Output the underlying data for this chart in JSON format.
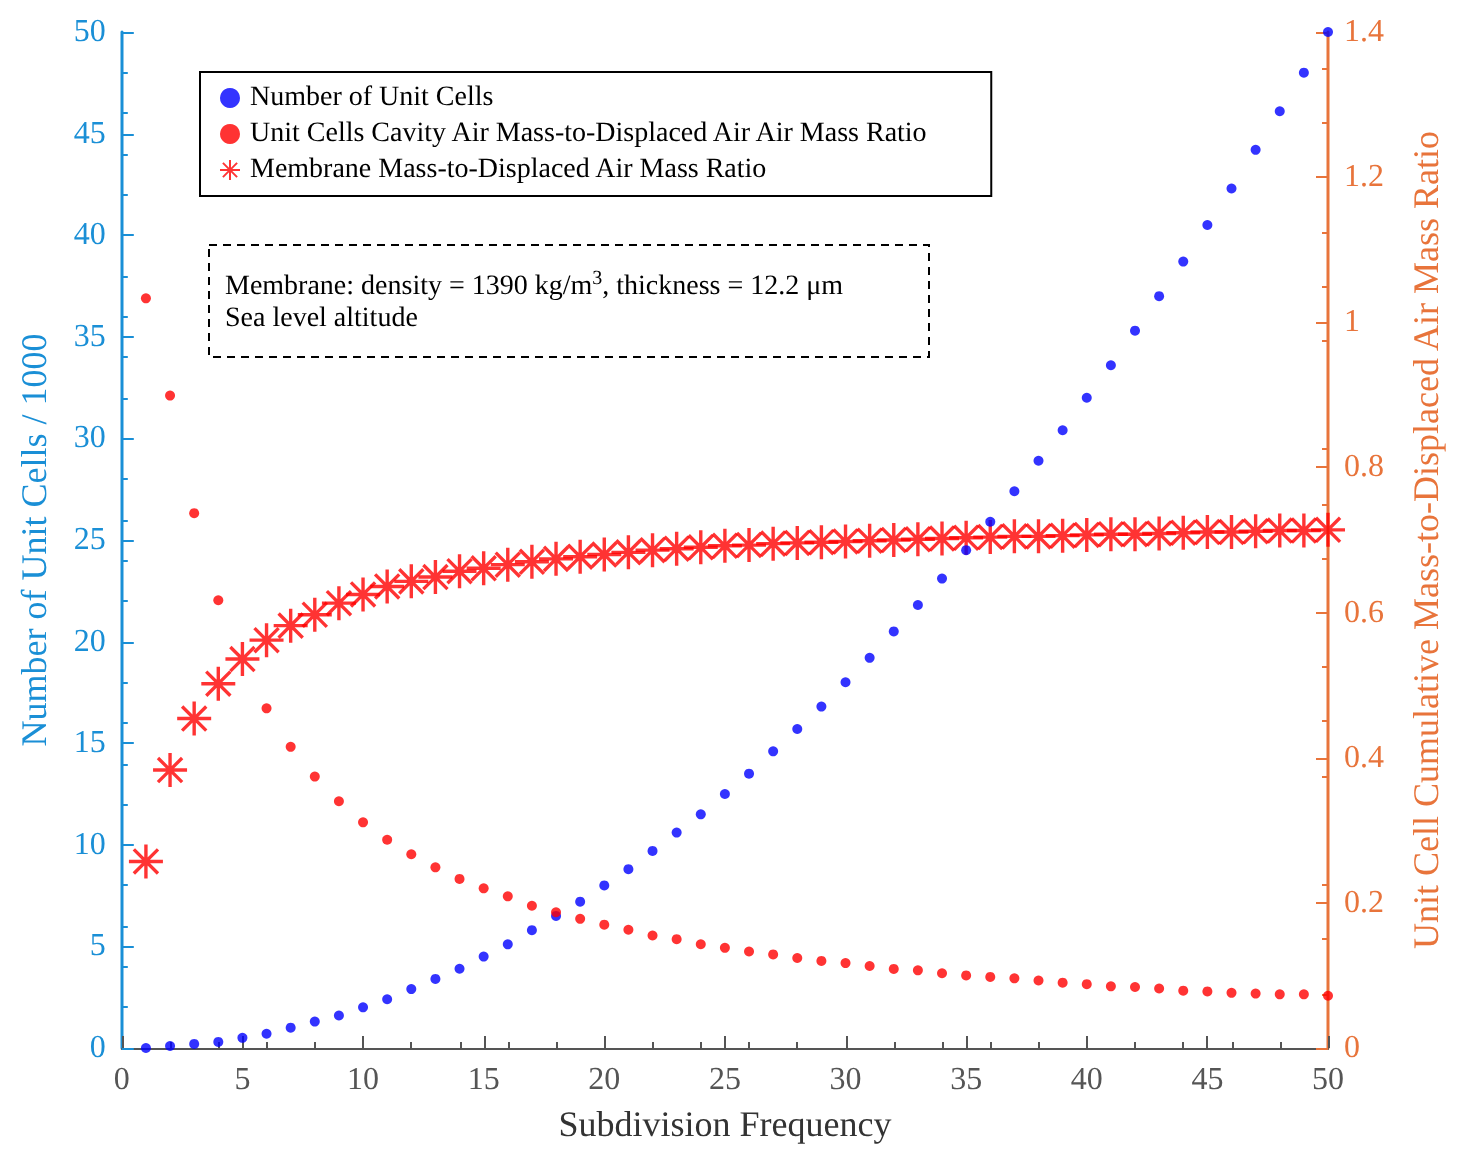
{
  "chart_data": {
    "type": "scatter",
    "xlabel": "Subdivision Frequency",
    "ylabel": "Number of Unit Cells / 1000",
    "y2label": "Unit Cell Cumulative Mass-to-Displaced Air Mass Ratio",
    "x": [
      1,
      2,
      3,
      4,
      5,
      6,
      7,
      8,
      9,
      10,
      11,
      12,
      13,
      14,
      15,
      16,
      17,
      18,
      19,
      20,
      21,
      22,
      23,
      24,
      25,
      26,
      27,
      28,
      29,
      30,
      31,
      32,
      33,
      34,
      35,
      36,
      37,
      38,
      39,
      40,
      41,
      42,
      43,
      44,
      45,
      46,
      47,
      48,
      49,
      50
    ],
    "xlim": [
      0,
      50
    ],
    "xticks": [
      0,
      5,
      10,
      15,
      20,
      25,
      30,
      35,
      40,
      45,
      50
    ],
    "ylim": [
      0,
      50
    ],
    "yticks": [
      0,
      5,
      10,
      15,
      20,
      25,
      30,
      35,
      40,
      45,
      50
    ],
    "y2lim": [
      0,
      1.4
    ],
    "y2ticks": [
      0,
      0.2,
      0.4,
      0.6,
      0.8,
      1,
      1.2,
      1.4
    ],
    "grid": false,
    "legend": "top left",
    "series": [
      {
        "name": "Number of Unit Cells",
        "color": "#0000ff",
        "marker": "circle",
        "values": [
          0,
          0.1,
          0.2,
          0.3,
          0.5,
          0.7,
          1,
          1.3,
          1.6,
          2,
          2.4,
          2.9,
          3.4,
          3.9,
          4.5,
          5.1,
          5.8,
          6.5,
          7.2,
          8,
          8.8,
          9.7,
          10.6,
          11.5,
          12.5,
          13.5,
          14.6,
          15.7,
          16.8,
          18,
          19.2,
          20.5,
          21.8,
          23.1,
          24.5,
          25.9,
          27.4,
          28.9,
          30.4,
          32,
          33.6,
          35.3,
          37,
          38.7,
          40.5,
          42.3,
          44.2,
          46.1,
          48,
          50
        ]
      },
      {
        "name": "Unit Cells Cavity Air Mass-to-Displaced Air Air Mass Ratio",
        "color": "#ff0000",
        "marker": "circle",
        "axis": "y2",
        "values": [
          1.033,
          0.899,
          0.737,
          0.617,
          null,
          0.468,
          0.415,
          0.374,
          0.34,
          0.311,
          0.287,
          0.267,
          0.249,
          0.233,
          0.22,
          0.209,
          0.196,
          0.187,
          0.178,
          0.17,
          0.163,
          0.155,
          0.15,
          0.143,
          0.138,
          0.133,
          0.129,
          0.124,
          0.12,
          0.117,
          0.113,
          0.109,
          0.107,
          0.103,
          0.1,
          0.098,
          0.096,
          0.093,
          0.09,
          0.088,
          0.085,
          0.084,
          0.082,
          0.079,
          0.078,
          0.076,
          0.075,
          0.074,
          0.074,
          0.072
        ]
      },
      {
        "name": "Membrane Mass-to-Displaced Air Mass Ratio",
        "color": "#ff0000",
        "marker": "star",
        "axis": "y2",
        "values": [
          0.257,
          0.383,
          0.454,
          0.502,
          0.536,
          0.562,
          0.582,
          0.597,
          0.613,
          0.625,
          0.636,
          0.643,
          0.649,
          0.657,
          0.661,
          0.666,
          0.67,
          0.674,
          0.677,
          0.68,
          0.683,
          0.686,
          0.688,
          0.69,
          0.692,
          0.693,
          0.695,
          0.696,
          0.697,
          0.698,
          0.699,
          0.7,
          0.701,
          0.702,
          0.703,
          0.704,
          0.705,
          0.705,
          0.706,
          0.707,
          0.708,
          0.708,
          0.709,
          0.71,
          0.711,
          0.711,
          0.712,
          0.713,
          0.713,
          0.714
        ]
      }
    ],
    "annotations": [
      "Membrane: density = 1390 kg/m$^{3}$, thickness = 12.2 μm",
      "Sea level altitude"
    ]
  }
}
